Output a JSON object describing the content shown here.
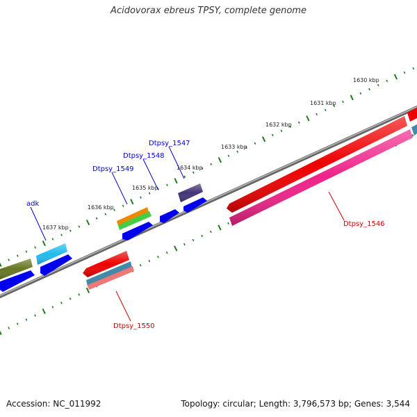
{
  "title": "Acidovorax ebreus TPSY, complete genome",
  "footer": {
    "accession": "Accession: NC_011992",
    "summary": "Topology: circular; Length: 3,796,573 bp; Genes: 3,544"
  },
  "ruler": {
    "unit": "kbp",
    "ticks": [
      {
        "kbp": 1630,
        "label": "1630 kbp"
      },
      {
        "kbp": 1631,
        "label": "1631 kbp"
      },
      {
        "kbp": 1632,
        "label": "1632 kbp"
      },
      {
        "kbp": 1633,
        "label": "1633 kbp"
      },
      {
        "kbp": 1634,
        "label": "1634 kbp"
      },
      {
        "kbp": 1635,
        "label": "1635 kbp"
      },
      {
        "kbp": 1636,
        "label": "1636 kbp"
      },
      {
        "kbp": 1637,
        "label": "1637 kbp"
      }
    ]
  },
  "gene_labels": [
    {
      "text": "adk",
      "color": "#0000cc"
    },
    {
      "text": "Dtpsy_1549",
      "color": "#0000cc"
    },
    {
      "text": "Dtpsy_1548",
      "color": "#0000cc"
    },
    {
      "text": "Dtpsy_1547",
      "color": "#0000cc"
    },
    {
      "text": "Dtpsy_1546",
      "color": "#cc0000"
    },
    {
      "text": "Dtpsy_1550",
      "color": "#cc0000"
    }
  ],
  "feature_colors": {
    "backbone": "#888888",
    "ruler_ticks": "#1a7a1a",
    "cds_forward": "#0000ee",
    "gene_red": "#ee0000",
    "gene_pink": "#ee2288",
    "gene_cyan": "#22bbee",
    "gene_olive": "#667722",
    "gene_orange": "#ee8800",
    "gene_green": "#44cc44",
    "gene_purple": "#443377",
    "gene_steelblue": "#4488aa",
    "gene_salmon": "#ee7777"
  }
}
